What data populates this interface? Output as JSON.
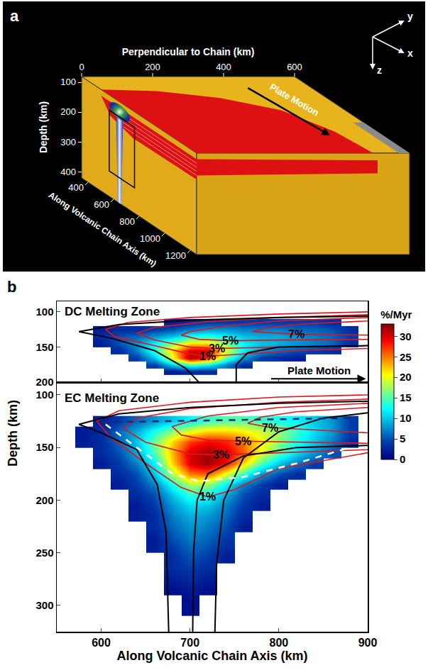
{
  "figure_a": {
    "label": "a",
    "axes": {
      "perpendicular": {
        "title": "Perpendicular to Chain (km)",
        "lim": [
          0,
          600
        ],
        "ticks": [
          0,
          200,
          400,
          600
        ]
      },
      "depth": {
        "title": "Depth (km)",
        "lim": [
          80,
          420
        ],
        "ticks": [
          100,
          200,
          300,
          400
        ]
      },
      "along": {
        "title": "Along Volcanic Chain Axis (km)",
        "lim": [
          350,
          1250
        ],
        "ticks": [
          400,
          600,
          800,
          1000,
          1200
        ]
      }
    },
    "arrow_label": "Plate Motion",
    "triad": {
      "x": "x",
      "y": "y",
      "z": "z"
    }
  },
  "chart_data": {
    "type": "heatmap",
    "label": "b",
    "xlabel": "Along Volcanic Chain Axis (km)",
    "ylabel": "Depth (km)",
    "xlim": [
      550,
      900
    ],
    "xticks": [
      600,
      700,
      800,
      900
    ],
    "colorbar": {
      "title": "%/Myr",
      "range": [
        0,
        33
      ],
      "ticks": [
        0,
        5,
        10,
        15,
        20,
        25,
        30
      ]
    },
    "panels": [
      {
        "title": "DC Melting Zone",
        "ylim": [
          200,
          85
        ],
        "yticks": [
          100,
          150,
          200
        ],
        "tick_labels": "y",
        "annotations": [
          "Plate Motion"
        ],
        "cells": {
          "x": [
            560,
            580,
            600,
            620,
            640,
            660,
            680,
            700,
            720,
            740,
            760,
            780,
            800,
            820,
            840,
            860,
            880
          ],
          "y": [
            115,
            125,
            135,
            145,
            155,
            165,
            175,
            185
          ],
          "z": [
            [
              null,
              null,
              null,
              null,
              null,
              null,
              2,
              3,
              4,
              4,
              4,
              4,
              4,
              4,
              4,
              3,
              null
            ],
            [
              null,
              null,
              2,
              3,
              3,
              4,
              5,
              7,
              8,
              8,
              7,
              7,
              7,
              6,
              6,
              5,
              3
            ],
            [
              null,
              null,
              3,
              5,
              6,
              8,
              10,
              13,
              14,
              12,
              10,
              9,
              9,
              8,
              7,
              6,
              4
            ],
            [
              null,
              null,
              2,
              5,
              8,
              12,
              17,
              22,
              22,
              17,
              12,
              10,
              9,
              8,
              7,
              6,
              3
            ],
            [
              null,
              null,
              null,
              3,
              7,
              14,
              22,
              30,
              30,
              20,
              12,
              8,
              6,
              5,
              4,
              3,
              null
            ],
            [
              null,
              null,
              null,
              null,
              4,
              10,
              20,
              32,
              28,
              16,
              8,
              4,
              3,
              2,
              null,
              null,
              null
            ],
            [
              null,
              null,
              null,
              null,
              null,
              4,
              10,
              14,
              12,
              7,
              3,
              null,
              null,
              null,
              null,
              null,
              null
            ],
            [
              null,
              null,
              null,
              null,
              null,
              null,
              2,
              3,
              3,
              null,
              null,
              null,
              null,
              null,
              null,
              null,
              null
            ]
          ]
        },
        "contours": [
          {
            "label": "1%",
            "x": [
              900,
              800,
              700,
              630,
              605,
              615,
              660,
              700,
              720,
              760,
              820,
              900
            ],
            "y": [
              100,
              103,
              108,
              115,
              125,
              135,
              148,
              160,
              163,
              160,
              155,
              152
            ]
          },
          {
            "label": "3%",
            "x": [
              900,
              800,
              720,
              660,
              640,
              660,
              700,
              730,
              800,
              900
            ],
            "y": [
              104,
              108,
              114,
              122,
              130,
              140,
              150,
              152,
              150,
              148
            ]
          },
          {
            "label": "5%",
            "x": [
              900,
              800,
              740,
              700,
              690,
              710,
              745,
              800,
              900
            ],
            "y": [
              108,
              113,
              120,
              128,
              133,
              139,
              141,
              140,
              139
            ]
          },
          {
            "label": "7%",
            "x": [
              900,
              830,
              790,
              770,
              820,
              900
            ],
            "y": [
              113,
              117,
              122,
              128,
              132,
              133
            ]
          }
        ],
        "streamlines": [
          {
            "x": [
              900,
              800,
              700,
              620,
              575,
              610,
              660,
              695,
              710
            ],
            "y": [
              106,
              108,
              112,
              118,
              128,
              137,
              155,
              180,
              200
            ]
          },
          {
            "x": [
              752,
              752,
              765,
              800,
              900
            ],
            "y": [
              200,
              175,
              158,
              150,
              148
            ]
          }
        ]
      },
      {
        "title": "EC Melting Zone",
        "ylim": [
          325,
          88
        ],
        "yticks": [
          100,
          150,
          200,
          250,
          300
        ],
        "cells": {
          "x": [
            560,
            580,
            600,
            620,
            640,
            660,
            680,
            700,
            720,
            740,
            760,
            780,
            800,
            820,
            840,
            860,
            880
          ],
          "y": [
            125,
            135,
            145,
            155,
            165,
            175,
            185,
            195,
            205,
            215,
            225,
            235,
            245,
            255,
            265,
            275,
            285,
            295,
            305
          ],
          "z": [
            [
              null,
              null,
              2,
              4,
              6,
              8,
              10,
              12,
              14,
              15,
              15,
              14,
              13,
              12,
              10,
              8,
              4
            ],
            [
              null,
              2,
              3,
              6,
              9,
              13,
              17,
              20,
              22,
              22,
              21,
              19,
              17,
              14,
              11,
              8,
              4
            ],
            [
              null,
              2,
              3,
              6,
              10,
              16,
              22,
              27,
              29,
              28,
              25,
              21,
              17,
              13,
              10,
              7,
              3
            ],
            [
              null,
              null,
              3,
              5,
              9,
              15,
              23,
              30,
              32,
              30,
              26,
              20,
              15,
              11,
              8,
              5,
              null
            ],
            [
              null,
              null,
              2,
              4,
              7,
              12,
              22,
              30,
              32,
              29,
              22,
              15,
              10,
              7,
              4,
              null,
              null
            ],
            [
              null,
              null,
              null,
              3,
              5,
              10,
              18,
              25,
              26,
              20,
              14,
              8,
              5,
              3,
              null,
              null,
              null
            ],
            [
              null,
              null,
              null,
              2,
              4,
              7,
              13,
              18,
              17,
              12,
              7,
              4,
              2,
              null,
              null,
              null,
              null
            ],
            [
              null,
              null,
              null,
              null,
              3,
              5,
              10,
              14,
              13,
              9,
              5,
              3,
              null,
              null,
              null,
              null,
              null
            ],
            [
              null,
              null,
              null,
              null,
              2,
              4,
              8,
              11,
              10,
              7,
              4,
              2,
              null,
              null,
              null,
              null,
              null
            ],
            [
              null,
              null,
              null,
              null,
              2,
              3,
              7,
              9,
              8,
              6,
              3,
              null,
              null,
              null,
              null,
              null,
              null
            ],
            [
              null,
              null,
              null,
              null,
              null,
              3,
              6,
              8,
              7,
              5,
              2,
              null,
              null,
              null,
              null,
              null,
              null
            ],
            [
              null,
              null,
              null,
              null,
              null,
              2,
              5,
              7,
              6,
              4,
              null,
              null,
              null,
              null,
              null,
              null,
              null
            ],
            [
              null,
              null,
              null,
              null,
              null,
              2,
              4,
              6,
              5,
              3,
              null,
              null,
              null,
              null,
              null,
              null,
              null
            ],
            [
              null,
              null,
              null,
              null,
              null,
              null,
              3,
              5,
              4,
              2,
              null,
              null,
              null,
              null,
              null,
              null,
              null
            ],
            [
              null,
              null,
              null,
              null,
              null,
              null,
              3,
              4,
              3,
              null,
              null,
              null,
              null,
              null,
              null,
              null,
              null
            ],
            [
              null,
              null,
              null,
              null,
              null,
              null,
              2,
              3,
              2,
              null,
              null,
              null,
              null,
              null,
              null,
              null,
              null
            ],
            [
              null,
              null,
              null,
              null,
              null,
              null,
              1,
              2,
              1,
              null,
              null,
              null,
              null,
              null,
              null,
              null,
              null
            ],
            [
              null,
              null,
              null,
              null,
              null,
              null,
              null,
              1,
              null,
              null,
              null,
              null,
              null,
              null,
              null,
              null,
              null
            ],
            [
              null,
              null,
              null,
              null,
              null,
              null,
              null,
              1,
              null,
              null,
              null,
              null,
              null,
              null,
              null,
              null,
              null
            ]
          ]
        },
        "contours": [
          {
            "label": "1%",
            "x": [
              900,
              800,
              700,
              620,
              595,
              610,
              650,
              690,
              720,
              750,
              800,
              900
            ],
            "y": [
              100,
              102,
              107,
              115,
              125,
              140,
              165,
              188,
              197,
              190,
              170,
              155
            ]
          },
          {
            "label": "3%",
            "x": [
              900,
              800,
              700,
              640,
              625,
              650,
              700,
              735,
              800,
              900
            ],
            "y": [
              104,
              107,
              113,
              122,
              132,
              145,
              156,
              157,
              155,
              152
            ]
          },
          {
            "label": "5%",
            "x": [
              900,
              800,
              720,
              680,
              690,
              720,
              760,
              900
            ],
            "y": [
              108,
              112,
              120,
              130,
              138,
              143,
              144,
              146
            ]
          },
          {
            "label": "7%",
            "x": [
              900,
              820,
              780,
              765,
              790,
              900
            ],
            "y": [
              112,
              116,
              121,
              127,
              131,
              136
            ]
          }
        ],
        "streamlines": [
          {
            "x": [
              900,
              800,
              700,
              620,
              575,
              600,
              640,
              663,
              673,
              676
            ],
            "y": [
              106,
              108,
              112,
              118,
              128,
              136,
              152,
              185,
              230,
              325
            ]
          },
          {
            "x": [
              703,
              704,
              708,
              720,
              760,
              820,
              900
            ],
            "y": [
              325,
              250,
              200,
              175,
              158,
              150,
              148
            ]
          },
          {
            "x": [
              728,
              730,
              738,
              760,
              800,
              850,
              900
            ],
            "y": [
              325,
              260,
              200,
              160,
              135,
              122,
              117
            ]
          }
        ],
        "boundaries": [
          {
            "color": "#ffffff",
            "line_style": "dash",
            "x": [
              605,
              640,
              680,
              710,
              760,
              820,
              880
            ],
            "y": [
              128,
              150,
              175,
              182,
              178,
              165,
              150
            ]
          },
          {
            "color": "#1a2a6c",
            "line_style": "dash",
            "x": [
              600,
              880
            ],
            "y": [
              126,
              122
            ]
          }
        ]
      }
    ]
  }
}
